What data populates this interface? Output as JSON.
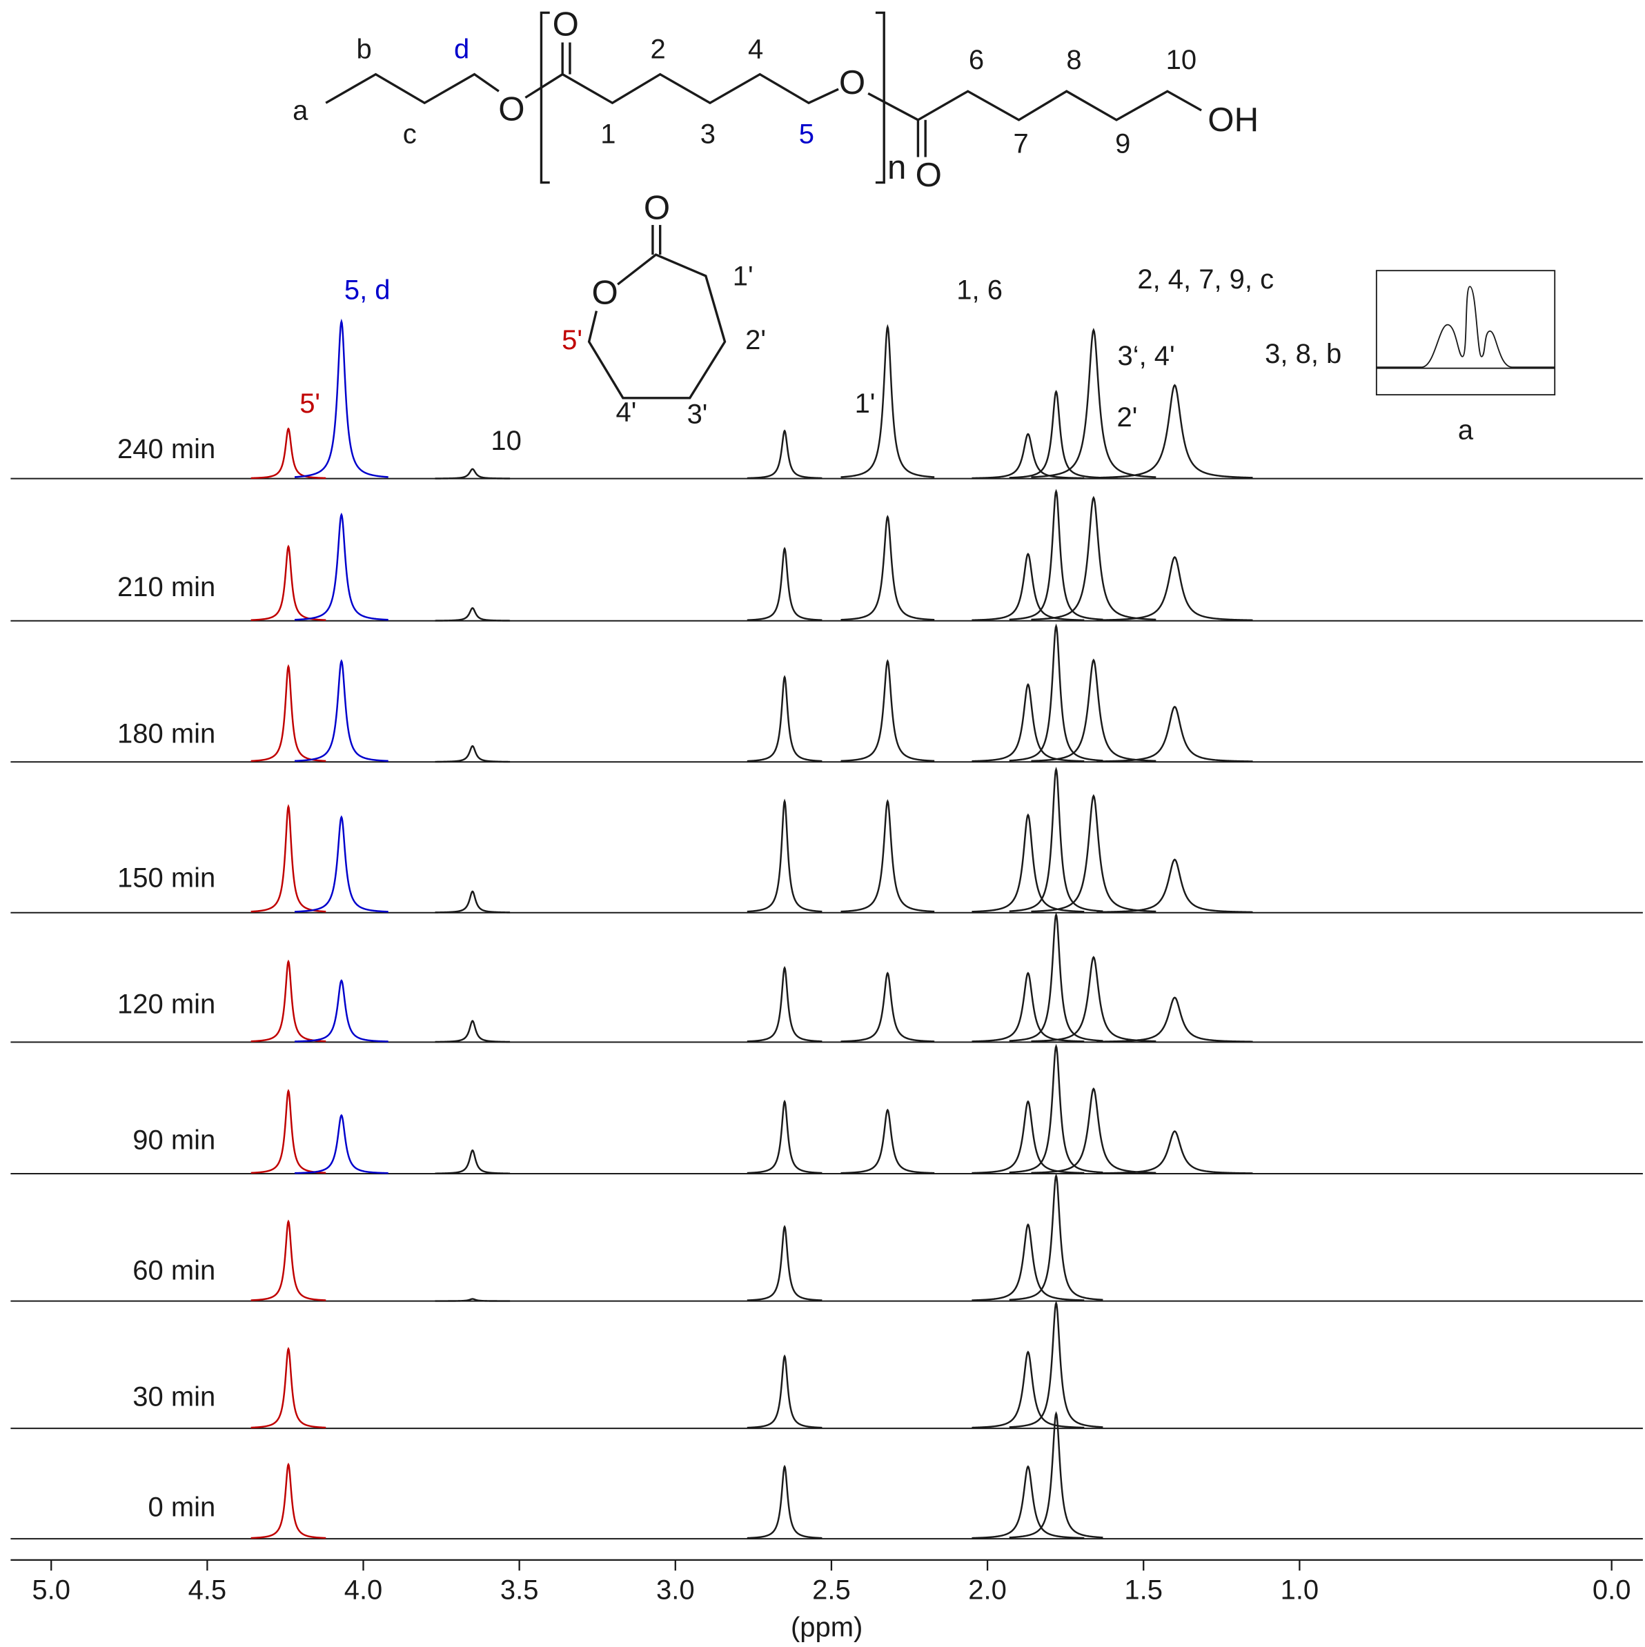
{
  "chart_data": {
    "type": "nmr",
    "xlabel": "(ppm)",
    "xlim": [
      5.13,
      -0.1
    ],
    "xticks": [
      {
        "value": 5,
        "label": "5.0"
      },
      {
        "value": 4.5,
        "label": "4.5"
      },
      {
        "value": 4,
        "label": "4.0"
      },
      {
        "value": 3.5,
        "label": "3.5"
      },
      {
        "value": 3,
        "label": "3.0"
      },
      {
        "value": 2.5,
        "label": "2.5"
      },
      {
        "value": 2,
        "label": "2.0"
      },
      {
        "value": 1.5,
        "label": "1.5"
      },
      {
        "value": 1,
        "label": "1.0"
      },
      {
        "value": 0,
        "label": "0.0"
      }
    ],
    "x": [
      4.24,
      4.07,
      3.65,
      2.65,
      2.32,
      1.87,
      1.78,
      1.66,
      1.4
    ],
    "peak_colors": [
      "#c00000",
      "#0000cc",
      "#1a1a1a",
      "#1a1a1a",
      "#1a1a1a",
      "#1a1a1a",
      "#1a1a1a",
      "#1a1a1a",
      "#1a1a1a"
    ],
    "peak_widths": [
      0.012,
      0.015,
      0.012,
      0.012,
      0.015,
      0.018,
      0.015,
      0.02,
      0.025
    ],
    "series": [
      {
        "name": "240 min",
        "color": "#1a1a1a",
        "values": [
          47,
          148,
          9,
          45,
          143,
          42,
          82,
          140,
          88
        ]
      },
      {
        "name": "210 min",
        "color": "#1a1a1a",
        "values": [
          70,
          100,
          12,
          68,
          98,
          63,
          122,
          116,
          60
        ]
      },
      {
        "name": "180 min",
        "color": "#1a1a1a",
        "values": [
          90,
          95,
          15,
          80,
          95,
          73,
          128,
          96,
          52
        ]
      },
      {
        "name": "150 min",
        "color": "#1a1a1a",
        "values": [
          100,
          90,
          20,
          105,
          105,
          92,
          135,
          110,
          50
        ]
      },
      {
        "name": "120 min",
        "color": "#1a1a1a",
        "values": [
          76,
          58,
          20,
          70,
          65,
          65,
          120,
          80,
          42
        ]
      },
      {
        "name": "90 min",
        "color": "#1a1a1a",
        "values": [
          78,
          55,
          22,
          68,
          60,
          68,
          120,
          80,
          40
        ]
      },
      {
        "name": "60 min",
        "color": "#1a1a1a",
        "values": [
          75,
          null,
          2,
          70,
          null,
          72,
          118,
          null,
          null
        ]
      },
      {
        "name": "30 min",
        "color": "#1a1a1a",
        "values": [
          75,
          null,
          null,
          68,
          null,
          72,
          118,
          null,
          null
        ]
      },
      {
        "name": "0 min",
        "color": "#1a1a1a",
        "values": [
          70,
          null,
          null,
          68,
          null,
          68,
          118,
          null,
          null
        ]
      }
    ],
    "annotations": [
      {
        "text": "5'",
        "color": "#c00000"
      },
      {
        "text": "5, d",
        "color": "#0000cc"
      },
      {
        "text": "10",
        "color": "#1a1a1a"
      },
      {
        "text": "1'",
        "color": "#1a1a1a"
      },
      {
        "text": "1, 6",
        "color": "#1a1a1a"
      },
      {
        "text": "2'",
        "color": "#1a1a1a"
      },
      {
        "text": "3‘, 4'",
        "color": "#1a1a1a"
      },
      {
        "text": "2, 4, 7, 9, c",
        "color": "#1a1a1a"
      },
      {
        "text": "3, 8, b",
        "color": "#1a1a1a"
      },
      {
        "text": "a",
        "color": "#1a1a1a"
      }
    ]
  },
  "structure": {
    "polymer": {
      "labels": [
        "a",
        "b",
        "c",
        "d",
        "1",
        "2",
        "3",
        "4",
        "5",
        "6",
        "7",
        "8",
        "9",
        "10"
      ],
      "atoms": [
        "O",
        "O",
        "O",
        "O",
        "OH"
      ],
      "repeat": "n"
    },
    "monomer": {
      "atoms": [
        "O",
        "O"
      ],
      "labels": [
        "1'",
        "2'",
        "3'",
        "4'",
        "5'"
      ]
    }
  }
}
